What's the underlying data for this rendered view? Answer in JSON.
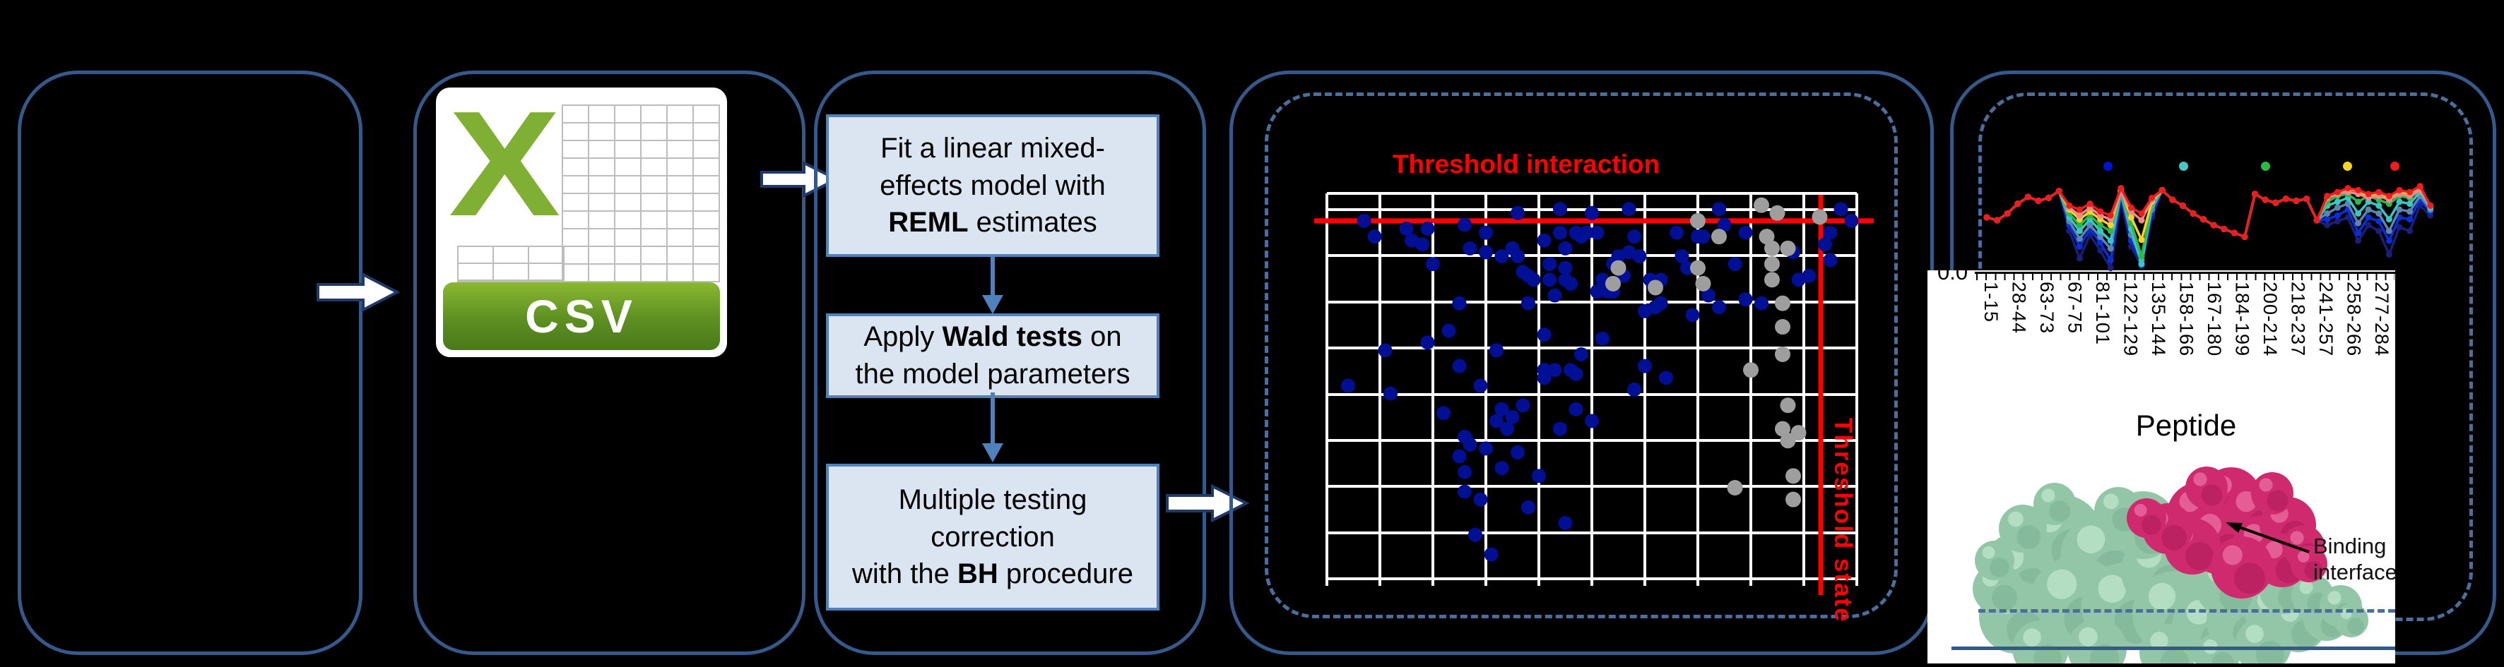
{
  "ui": {
    "csv_label": "CSV",
    "csv_x": "X",
    "volcano_title": "Threshold interaction",
    "volcano_vline_label": "Threshold state",
    "uptake_ytick": "0.0",
    "uptake_xlabel": "Peptide",
    "binding_label": "Binding interface"
  },
  "pipeline_steps": [
    {
      "lines": [
        [
          {
            "t": "Fit a linear mixed-"
          }
        ],
        [
          {
            "t": "effects model with"
          }
        ],
        [
          {
            "t": "REML",
            "b": true
          },
          {
            "t": " estimates"
          }
        ]
      ]
    },
    {
      "lines": [
        [
          {
            "t": "Apply "
          },
          {
            "t": "Wald tests",
            "b": true
          },
          {
            "t": " on"
          }
        ],
        [
          {
            "t": "the model parameters"
          }
        ]
      ]
    },
    {
      "lines": [
        [
          {
            "t": "Multiple testing"
          }
        ],
        [
          {
            "t": "correction"
          }
        ],
        [
          {
            "t": "with the "
          },
          {
            "t": "BH",
            "b": true
          },
          {
            "t": " procedure"
          }
        ]
      ]
    }
  ],
  "chart_data": [
    {
      "id": "interaction_scatter",
      "type": "scatter",
      "title": "Threshold interaction",
      "vline_label": "Threshold state",
      "xlim": [
        0,
        1
      ],
      "ylim": [
        0,
        1
      ],
      "grid": true,
      "hline_y": 0.07,
      "vline_x": 0.932,
      "series": [
        {
          "name": "blue_points",
          "color": "#000f93",
          "points": [
            [
              0.07,
              0.07
            ],
            [
              0.09,
              0.11
            ],
            [
              0.15,
              0.09
            ],
            [
              0.16,
              0.12
            ],
            [
              0.18,
              0.13
            ],
            [
              0.19,
              0.09
            ],
            [
              0.2,
              0.18
            ],
            [
              0.26,
              0.08
            ],
            [
              0.27,
              0.14
            ],
            [
              0.3,
              0.15
            ],
            [
              0.3,
              0.1
            ],
            [
              0.33,
              0.16
            ],
            [
              0.35,
              0.14
            ],
            [
              0.36,
              0.05
            ],
            [
              0.36,
              0.16
            ],
            [
              0.37,
              0.2
            ],
            [
              0.38,
              0.28
            ],
            [
              0.38,
              0.21
            ],
            [
              0.39,
              0.22
            ],
            [
              0.41,
              0.12
            ],
            [
              0.42,
              0.18
            ],
            [
              0.42,
              0.22
            ],
            [
              0.43,
              0.26
            ],
            [
              0.44,
              0.04
            ],
            [
              0.44,
              0.1
            ],
            [
              0.45,
              0.22
            ],
            [
              0.45,
              0.14
            ],
            [
              0.45,
              0.19
            ],
            [
              0.46,
              0.23
            ],
            [
              0.47,
              0.1
            ],
            [
              0.48,
              0.11
            ],
            [
              0.49,
              0.1
            ],
            [
              0.5,
              0.05
            ],
            [
              0.51,
              0.1
            ],
            [
              0.51,
              0.25
            ],
            [
              0.52,
              0.22
            ],
            [
              0.53,
              0.25
            ],
            [
              0.54,
              0.18
            ],
            [
              0.54,
              0.25
            ],
            [
              0.55,
              0.16
            ],
            [
              0.56,
              0.21
            ],
            [
              0.57,
              0.15
            ],
            [
              0.57,
              0.04
            ],
            [
              0.58,
              0.11
            ],
            [
              0.59,
              0.16
            ],
            [
              0.6,
              0.3
            ],
            [
              0.61,
              0.22
            ],
            [
              0.62,
              0.29
            ],
            [
              0.63,
              0.28
            ],
            [
              0.63,
              0.22
            ],
            [
              0.66,
              0.1
            ],
            [
              0.67,
              0.16
            ],
            [
              0.68,
              0.19
            ],
            [
              0.69,
              0.31
            ],
            [
              0.7,
              0.11
            ],
            [
              0.71,
              0.11
            ],
            [
              0.72,
              0.26
            ],
            [
              0.74,
              0.29
            ],
            [
              0.74,
              0.04
            ],
            [
              0.75,
              0.08
            ],
            [
              0.77,
              0.18
            ],
            [
              0.79,
              0.1
            ],
            [
              0.79,
              0.27
            ],
            [
              0.82,
              0.28
            ],
            [
              0.88,
              0.15
            ],
            [
              0.89,
              0.22
            ],
            [
              0.91,
              0.21
            ],
            [
              0.94,
              0.13
            ],
            [
              0.95,
              0.17
            ],
            [
              0.95,
              0.1
            ],
            [
              0.97,
              0.04
            ],
            [
              0.99,
              0.07
            ],
            [
              0.04,
              0.49
            ],
            [
              0.11,
              0.4
            ],
            [
              0.12,
              0.51
            ],
            [
              0.19,
              0.38
            ],
            [
              0.22,
              0.56
            ],
            [
              0.23,
              0.35
            ],
            [
              0.25,
              0.28
            ],
            [
              0.25,
              0.44
            ],
            [
              0.25,
              0.67
            ],
            [
              0.26,
              0.62
            ],
            [
              0.26,
              0.71
            ],
            [
              0.26,
              0.76
            ],
            [
              0.27,
              0.64
            ],
            [
              0.28,
              0.87
            ],
            [
              0.29,
              0.49
            ],
            [
              0.29,
              0.78
            ],
            [
              0.3,
              0.65
            ],
            [
              0.31,
              0.92
            ],
            [
              0.32,
              0.4
            ],
            [
              0.32,
              0.58
            ],
            [
              0.33,
              0.55
            ],
            [
              0.33,
              0.7
            ],
            [
              0.34,
              0.6
            ],
            [
              0.35,
              0.57
            ],
            [
              0.36,
              0.66
            ],
            [
              0.37,
              0.54
            ],
            [
              0.38,
              0.8
            ],
            [
              0.4,
              0.72
            ],
            [
              0.41,
              0.36
            ],
            [
              0.41,
              0.45
            ],
            [
              0.41,
              0.47
            ],
            [
              0.43,
              0.45
            ],
            [
              0.44,
              0.6
            ],
            [
              0.45,
              0.84
            ],
            [
              0.46,
              0.45
            ],
            [
              0.47,
              0.46
            ],
            [
              0.47,
              0.55
            ],
            [
              0.48,
              0.41
            ],
            [
              0.5,
              0.58
            ],
            [
              0.52,
              0.37
            ],
            [
              0.58,
              0.5
            ],
            [
              0.6,
              0.44
            ],
            [
              0.64,
              0.47
            ]
          ]
        },
        {
          "name": "gray_points",
          "color": "#9e9e9e",
          "points": [
            [
              0.7,
              0.07
            ],
            [
              0.74,
              0.11
            ],
            [
              0.55,
              0.19
            ],
            [
              0.54,
              0.23
            ],
            [
              0.62,
              0.24
            ],
            [
              0.7,
              0.19
            ],
            [
              0.71,
              0.23
            ],
            [
              0.82,
              0.03
            ],
            [
              0.83,
              0.11
            ],
            [
              0.84,
              0.14
            ],
            [
              0.84,
              0.18
            ],
            [
              0.84,
              0.22
            ],
            [
              0.85,
              0.05
            ],
            [
              0.87,
              0.14
            ],
            [
              0.86,
              0.28
            ],
            [
              0.86,
              0.34
            ],
            [
              0.86,
              0.41
            ],
            [
              0.8,
              0.45
            ],
            [
              0.87,
              0.54
            ],
            [
              0.86,
              0.6
            ],
            [
              0.89,
              0.61
            ],
            [
              0.87,
              0.63
            ],
            [
              0.88,
              0.72
            ],
            [
              0.88,
              0.78
            ],
            [
              0.77,
              0.75
            ],
            [
              0.93,
              0.06
            ]
          ]
        }
      ]
    },
    {
      "id": "uptake_lines",
      "type": "line",
      "xlabel": "Peptide",
      "visible_ytick": "0.0",
      "ylim": [
        0,
        1
      ],
      "categories": [
        "1-15",
        "28-44",
        "63-73",
        "67-75",
        "81-101",
        "122-129",
        "135-144",
        "158-166",
        "167-180",
        "184-199",
        "200-214",
        "218-237",
        "241-257",
        "258-266",
        "277-284"
      ],
      "legend_dot_colors": [
        "#0014d2",
        "#4cc5c5",
        "#2eb84a",
        "#f5d327",
        "#ee1c1c"
      ],
      "series": [
        {
          "name": "navy",
          "color": "#1a1f7a",
          "values": [
            0.58,
            0.55,
            0.62,
            0.72,
            0.79,
            0.75,
            0.78,
            0.85,
            0.44,
            0.16,
            0.4,
            0.24,
            0.06,
            0.76,
            0.28,
            0.08,
            0.58,
            0.86,
            0.76,
            0.7,
            0.62,
            0.56,
            0.5,
            0.46,
            0.42,
            0.38,
            0.82,
            0.76,
            0.73,
            0.77,
            0.75,
            0.77,
            0.55,
            0.5,
            0.54,
            0.58,
            0.34,
            0.5,
            0.44,
            0.2,
            0.48,
            0.44,
            0.7,
            0.6
          ]
        },
        {
          "name": "blue",
          "color": "#0a2fd6",
          "values": [
            0.58,
            0.55,
            0.62,
            0.72,
            0.79,
            0.75,
            0.78,
            0.85,
            0.5,
            0.28,
            0.46,
            0.32,
            0.14,
            0.8,
            0.34,
            0.12,
            0.62,
            0.86,
            0.76,
            0.7,
            0.62,
            0.56,
            0.5,
            0.46,
            0.42,
            0.38,
            0.82,
            0.76,
            0.73,
            0.77,
            0.75,
            0.77,
            0.55,
            0.56,
            0.6,
            0.66,
            0.42,
            0.58,
            0.54,
            0.34,
            0.58,
            0.56,
            0.76,
            0.64
          ]
        },
        {
          "name": "steel-blue",
          "color": "#5c85b0",
          "values": [
            0.58,
            0.55,
            0.62,
            0.72,
            0.79,
            0.75,
            0.78,
            0.85,
            0.54,
            0.36,
            0.5,
            0.38,
            0.26,
            0.82,
            0.4,
            0.14,
            0.66,
            0.86,
            0.76,
            0.7,
            0.62,
            0.56,
            0.5,
            0.46,
            0.42,
            0.38,
            0.82,
            0.76,
            0.73,
            0.77,
            0.75,
            0.77,
            0.55,
            0.62,
            0.68,
            0.72,
            0.52,
            0.66,
            0.62,
            0.44,
            0.66,
            0.64,
            0.8,
            0.66
          ]
        },
        {
          "name": "cyan",
          "color": "#38c6c6",
          "values": [
            0.58,
            0.55,
            0.62,
            0.72,
            0.79,
            0.75,
            0.78,
            0.85,
            0.58,
            0.44,
            0.56,
            0.44,
            0.34,
            0.84,
            0.46,
            0.1,
            0.7,
            0.86,
            0.76,
            0.7,
            0.62,
            0.56,
            0.5,
            0.46,
            0.42,
            0.38,
            0.82,
            0.76,
            0.73,
            0.77,
            0.75,
            0.77,
            0.55,
            0.7,
            0.74,
            0.78,
            0.62,
            0.74,
            0.7,
            0.56,
            0.74,
            0.72,
            0.84,
            0.68
          ]
        },
        {
          "name": "green",
          "color": "#2eb84a",
          "values": [
            0.58,
            0.55,
            0.62,
            0.72,
            0.79,
            0.75,
            0.78,
            0.85,
            0.62,
            0.5,
            0.6,
            0.5,
            0.44,
            0.85,
            0.52,
            0.18,
            0.72,
            0.86,
            0.76,
            0.7,
            0.62,
            0.56,
            0.5,
            0.46,
            0.42,
            0.38,
            0.82,
            0.76,
            0.73,
            0.77,
            0.75,
            0.77,
            0.55,
            0.74,
            0.8,
            0.82,
            0.74,
            0.8,
            0.76,
            0.72,
            0.8,
            0.78,
            0.86,
            0.7
          ]
        },
        {
          "name": "yellow",
          "color": "#f8d225",
          "values": [
            0.58,
            0.55,
            0.62,
            0.72,
            0.79,
            0.75,
            0.78,
            0.85,
            0.66,
            0.56,
            0.64,
            0.56,
            0.5,
            0.86,
            0.58,
            0.35,
            0.74,
            0.86,
            0.76,
            0.7,
            0.62,
            0.56,
            0.5,
            0.46,
            0.42,
            0.38,
            0.82,
            0.76,
            0.73,
            0.77,
            0.75,
            0.77,
            0.55,
            0.78,
            0.82,
            0.87,
            0.85,
            0.8,
            0.82,
            0.78,
            0.84,
            0.82,
            0.89,
            0.7
          ]
        },
        {
          "name": "salmon",
          "color": "#f08a8a",
          "values": [
            0.58,
            0.55,
            0.62,
            0.72,
            0.79,
            0.75,
            0.78,
            0.85,
            0.68,
            0.6,
            0.68,
            0.6,
            0.56,
            0.84,
            0.64,
            0.55,
            0.76,
            0.86,
            0.76,
            0.7,
            0.62,
            0.56,
            0.5,
            0.46,
            0.42,
            0.38,
            0.82,
            0.76,
            0.73,
            0.77,
            0.75,
            0.77,
            0.55,
            0.78,
            0.82,
            0.84,
            0.82,
            0.78,
            0.8,
            0.76,
            0.82,
            0.8,
            0.86,
            0.7
          ]
        },
        {
          "name": "red",
          "color": "#ee1c1c",
          "values": [
            0.58,
            0.55,
            0.62,
            0.72,
            0.79,
            0.75,
            0.78,
            0.85,
            0.7,
            0.66,
            0.72,
            0.64,
            0.6,
            0.88,
            0.68,
            0.62,
            0.78,
            0.86,
            0.76,
            0.7,
            0.62,
            0.56,
            0.5,
            0.46,
            0.42,
            0.38,
            0.82,
            0.76,
            0.73,
            0.77,
            0.75,
            0.77,
            0.55,
            0.8,
            0.84,
            0.88,
            0.86,
            0.82,
            0.84,
            0.8,
            0.86,
            0.84,
            0.9,
            0.7
          ]
        }
      ]
    }
  ]
}
